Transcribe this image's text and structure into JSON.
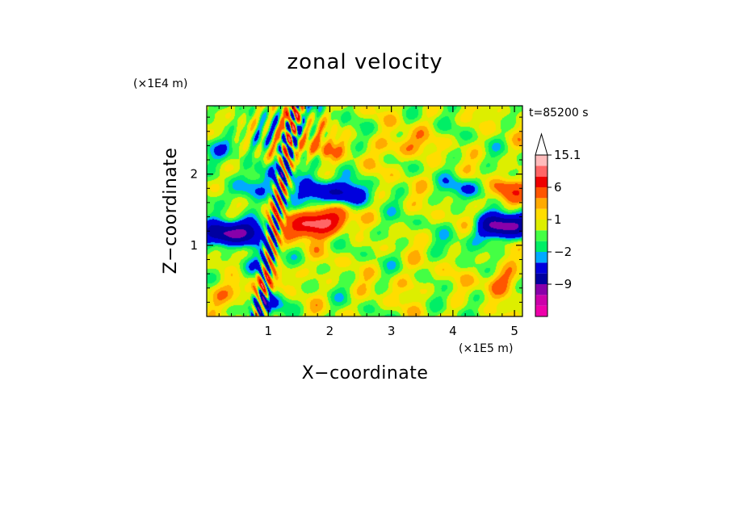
{
  "chart_data": {
    "type": "heatmap",
    "title": "zonal velocity",
    "xlabel": "X−coordinate",
    "ylabel": "Z−coordinate",
    "x_scale_label": "(×1E5 m)",
    "y_scale_label": "(×1E4 m)",
    "time_label": "t=85200 s",
    "xlim": [
      0,
      5.13
    ],
    "ylim": [
      0,
      2.96
    ],
    "x_ticks": [
      {
        "value": 1,
        "label": "1"
      },
      {
        "value": 2,
        "label": "2"
      },
      {
        "value": 3,
        "label": "3"
      },
      {
        "value": 4,
        "label": "4"
      },
      {
        "value": 5,
        "label": "5"
      }
    ],
    "y_ticks": [
      {
        "value": 1,
        "label": "1"
      },
      {
        "value": 2,
        "label": "2"
      }
    ],
    "colorbar": {
      "levels": [
        -15,
        -12,
        -9,
        -6,
        -3,
        -2,
        -1,
        0,
        1,
        2,
        3,
        6,
        9,
        12,
        15.1
      ],
      "colors": [
        "#ee00aa",
        "#cc00aa",
        "#8800aa",
        "#0000a0",
        "#0000dd",
        "#00aaff",
        "#00ee66",
        "#44ff44",
        "#ddee00",
        "#ffdd00",
        "#ffaa00",
        "#ff5500",
        "#ee0000",
        "#ff6666",
        "#ffbbbb"
      ],
      "overflow_color": "#ffffff",
      "labels": [
        {
          "value": 15.1,
          "label": "15.1"
        },
        {
          "value": 6,
          "label": "6"
        },
        {
          "value": 1,
          "label": "1"
        },
        {
          "value": -2,
          "label": "−2"
        },
        {
          "value": -9,
          "label": "−9"
        }
      ]
    },
    "features": [
      {
        "x": 0.25,
        "z": 1.15,
        "u": -9
      },
      {
        "x": 0.7,
        "z": 1.2,
        "u": -6
      },
      {
        "x": 1.6,
        "z": 1.28,
        "u": 8
      },
      {
        "x": 2.0,
        "z": 1.35,
        "u": 7
      },
      {
        "x": 1.8,
        "z": 1.75,
        "u": -6
      },
      {
        "x": 2.3,
        "z": 1.72,
        "u": -5
      },
      {
        "x": 1.2,
        "z": 2.02,
        "u": -4
      },
      {
        "x": 4.7,
        "z": 1.25,
        "u": -8
      },
      {
        "x": 5.05,
        "z": 1.3,
        "u": -6
      },
      {
        "x": 4.2,
        "z": 1.8,
        "u": -3
      },
      {
        "x": 4.9,
        "z": 1.75,
        "u": 4
      },
      {
        "x": 3.2,
        "z": 2.4,
        "u": 3
      },
      {
        "x": 1.8,
        "z": 2.35,
        "u": 3
      },
      {
        "x": 2.8,
        "z": 1.25,
        "u": -1
      },
      {
        "x": 4.1,
        "z": 1.0,
        "u": -1
      },
      {
        "x": 3.3,
        "z": 0.45,
        "u": 1
      },
      {
        "x": 4.8,
        "z": 0.5,
        "u": 3
      },
      {
        "x": 0.6,
        "z": 0.35,
        "u": 4
      },
      {
        "x": 0.95,
        "z": 0.2,
        "u": -5
      },
      {
        "x": 0.9,
        "z": 0.7,
        "u": -4
      },
      {
        "x": 1.15,
        "z": 0.6,
        "u": 3
      },
      {
        "x": 0.4,
        "z": 2.4,
        "u": -3
      },
      {
        "x": 0.55,
        "z": 1.75,
        "u": -3
      }
    ]
  }
}
